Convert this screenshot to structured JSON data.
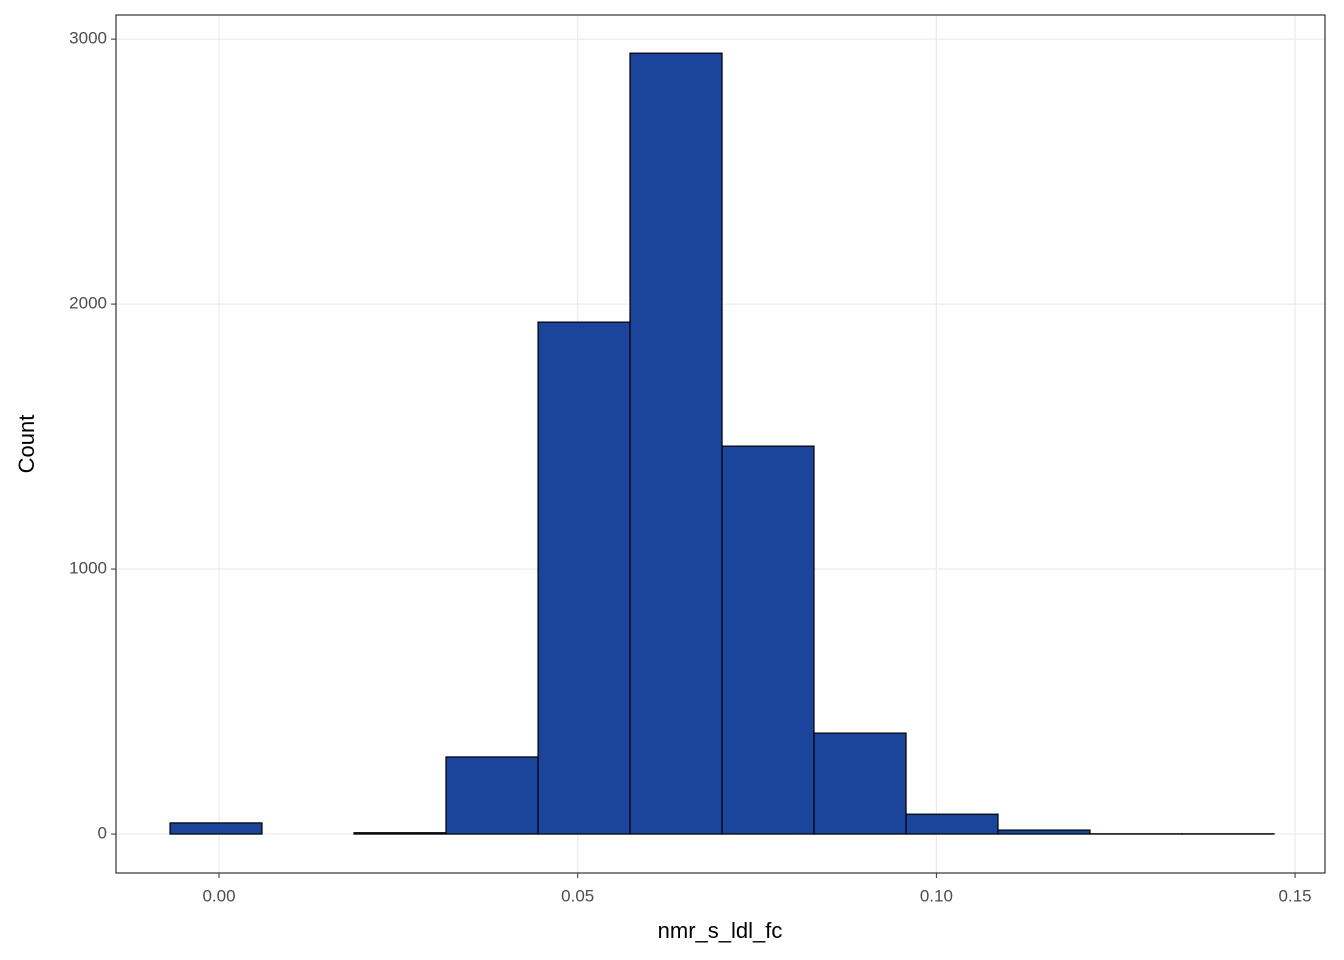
{
  "chart_data": {
    "type": "histogram",
    "x_label": "nmr_s_ldl_fc",
    "y_label": "Count",
    "bins": [
      -0.00683,
      0.00599,
      0.01882,
      0.03164,
      0.04447,
      0.05729,
      0.07012,
      0.08294,
      0.09577,
      0.10859,
      0.12141,
      0.13424,
      0.14706
    ],
    "counts": [
      42,
      0,
      5,
      291,
      1932,
      2947,
      1464,
      381,
      75,
      15,
      1,
      1
    ],
    "color": "#1b449c",
    "xlim": [
      -0.01436,
      0.15417
    ],
    "xticks": [
      {
        "value": 0,
        "label": "0.00"
      },
      {
        "value": 0.05,
        "label": "0.05"
      },
      {
        "value": 0.1,
        "label": "0.10"
      },
      {
        "value": 0.15,
        "label": "0.15"
      }
    ],
    "ylim": [
      -147,
      3091
    ],
    "yticks": [
      0,
      1000,
      2000,
      3000
    ],
    "grid": true
  }
}
